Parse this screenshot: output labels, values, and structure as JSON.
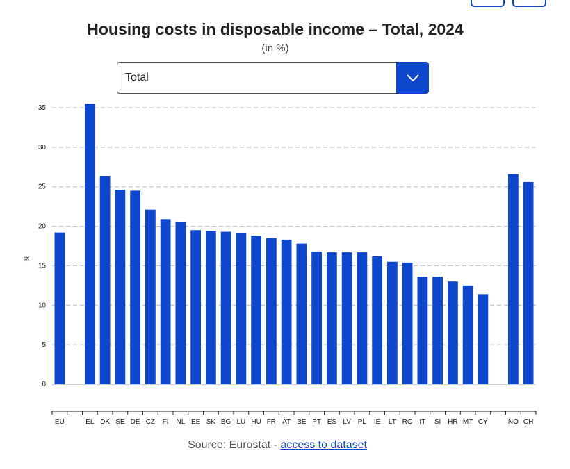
{
  "header": {
    "title": "Housing costs in disposable income – Total, 2024",
    "subtitle": "(in %)"
  },
  "filter": {
    "selected": "Total",
    "icon": "chevron-down-icon"
  },
  "colors": {
    "bar": "#0e47cb",
    "accent": "#0e47cb",
    "grid": "#c8c8c8"
  },
  "chart_data": {
    "type": "bar",
    "title": "Housing costs in disposable income – Total, 2024",
    "subtitle": "(in %)",
    "xlabel": "",
    "ylabel": "%",
    "ylim": [
      0,
      35
    ],
    "yticks": [
      0,
      5,
      10,
      15,
      20,
      25,
      30,
      35
    ],
    "grid": true,
    "categories": [
      "EU",
      "",
      "EL",
      "DK",
      "SE",
      "DE",
      "CZ",
      "FI",
      "NL",
      "EE",
      "SK",
      "BG",
      "LU",
      "HU",
      "FR",
      "AT",
      "BE",
      "PT",
      "ES",
      "LV",
      "PL",
      "IE",
      "LT",
      "RO",
      "IT",
      "SI",
      "HR",
      "MT",
      "CY",
      "",
      "NO",
      "CH"
    ],
    "values": [
      19.2,
      null,
      35.5,
      26.3,
      24.6,
      24.5,
      22.1,
      20.9,
      20.5,
      19.5,
      19.4,
      19.3,
      19.1,
      18.8,
      18.5,
      18.3,
      17.8,
      16.8,
      16.7,
      16.7,
      16.7,
      16.2,
      15.5,
      15.4,
      13.6,
      13.6,
      13.0,
      12.5,
      11.4,
      null,
      26.6,
      25.6
    ]
  },
  "footer": {
    "source_prefix": "Source: Eurostat - ",
    "source_link": "access to dataset"
  }
}
